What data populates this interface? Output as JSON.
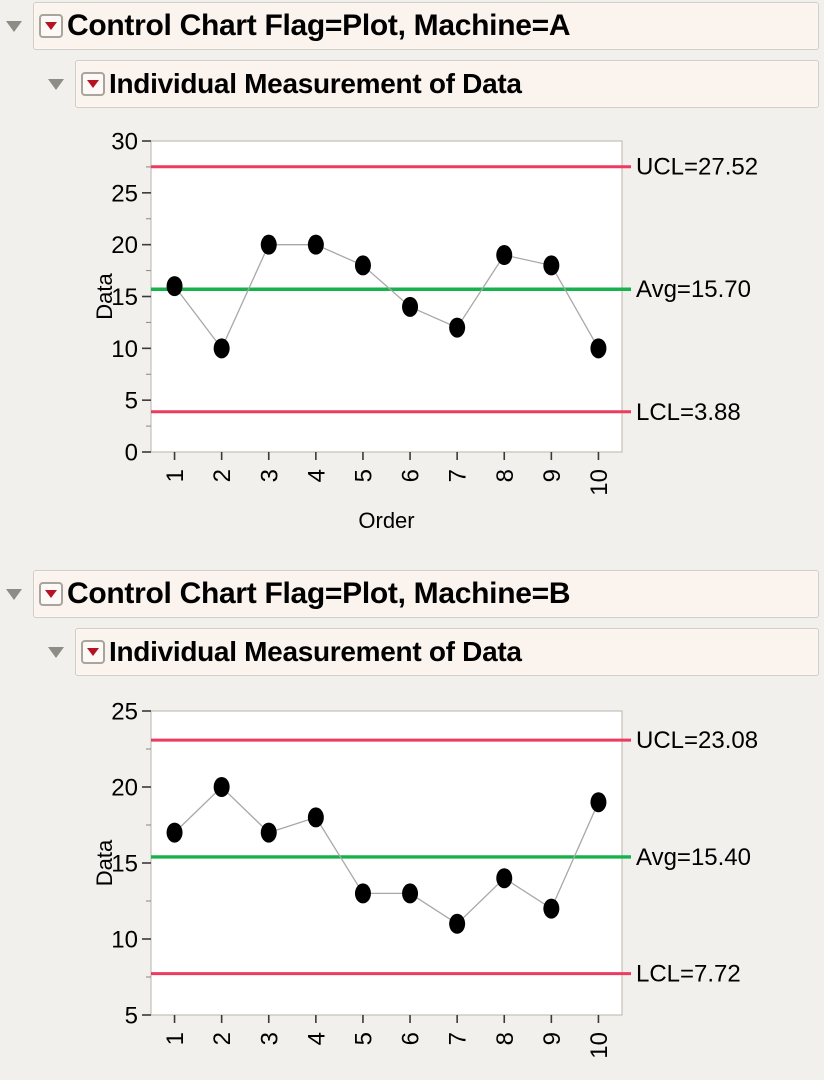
{
  "page": {
    "background": "#f2f0ec"
  },
  "sections": [
    {
      "title": "Control Chart Flag=Plot, Machine=A",
      "subtitle": "Individual Measurement of Data"
    },
    {
      "title": "Control Chart Flag=Plot, Machine=B",
      "subtitle": "Individual Measurement of Data"
    }
  ],
  "icons": {
    "disclosure": "disclosure-triangle-icon",
    "menu": "red-triangle-menu-icon"
  },
  "colors": {
    "header_background": "#faf3ee",
    "page_background": "#f2f0ec",
    "limit_line": "#ed3a5f",
    "center_line": "#17b24b",
    "marker": "#000000",
    "menu_triangle": "#b51322"
  },
  "chart_data": [
    {
      "type": "line",
      "title": "Individual Measurement of Data (Machine=A)",
      "x": [
        1,
        2,
        3,
        4,
        5,
        6,
        7,
        8,
        9,
        10
      ],
      "values": [
        16,
        10,
        20,
        20,
        18,
        14,
        12,
        19,
        18,
        10
      ],
      "xlabel": "Order",
      "ylabel": "Data",
      "ylim": [
        0,
        30
      ],
      "yticks": [
        0,
        5,
        10,
        15,
        20,
        25,
        30
      ],
      "grid": false,
      "legend": "none",
      "marker_color": "#000000",
      "connector_color": "#a8a8a8",
      "control_lines": [
        {
          "name": "ucl",
          "label": "UCL=27.52",
          "value": 27.52,
          "color": "#ed3a5f"
        },
        {
          "name": "avg",
          "label": "Avg=15.70",
          "value": 15.7,
          "color": "#17b24b"
        },
        {
          "name": "lcl",
          "label": "LCL=3.88",
          "value": 3.88,
          "color": "#ed3a5f"
        }
      ]
    },
    {
      "type": "line",
      "title": "Individual Measurement of Data (Machine=B)",
      "x": [
        1,
        2,
        3,
        4,
        5,
        6,
        7,
        8,
        9,
        10
      ],
      "values": [
        17,
        20,
        17,
        18,
        13,
        13,
        11,
        14,
        12,
        19
      ],
      "xlabel": "",
      "ylabel": "Data",
      "ylim": [
        5,
        25
      ],
      "yticks": [
        5,
        10,
        15,
        20,
        25
      ],
      "grid": false,
      "legend": "none",
      "marker_color": "#000000",
      "connector_color": "#a8a8a8",
      "control_lines": [
        {
          "name": "ucl",
          "label": "UCL=23.08",
          "value": 23.08,
          "color": "#ed3a5f"
        },
        {
          "name": "avg",
          "label": "Avg=15.40",
          "value": 15.4,
          "color": "#17b24b"
        },
        {
          "name": "lcl",
          "label": "LCL=7.72",
          "value": 7.72,
          "color": "#ed3a5f"
        }
      ]
    }
  ]
}
